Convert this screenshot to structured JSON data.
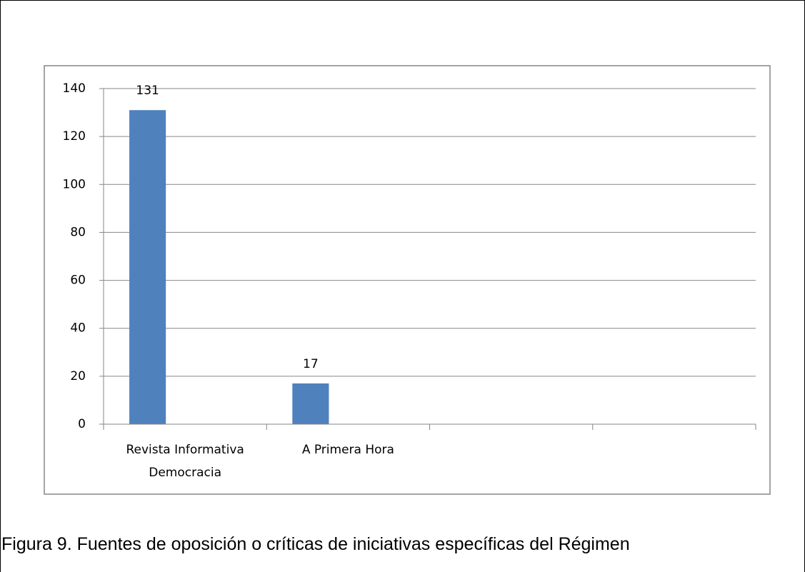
{
  "chart_data": {
    "type": "bar",
    "categories": [
      "Revista Informativa Democracia",
      "A Primera Hora",
      null,
      null
    ],
    "values": [
      131,
      17,
      null,
      null
    ],
    "color": "#4f81bd",
    "ylim": [
      0,
      140
    ],
    "yticks": [
      0,
      20,
      40,
      60,
      80,
      100,
      120,
      140
    ],
    "grid": true,
    "caption": "Figura 9. Fuentes de oposición o críticas de iniciativas específicas del Régimen"
  }
}
